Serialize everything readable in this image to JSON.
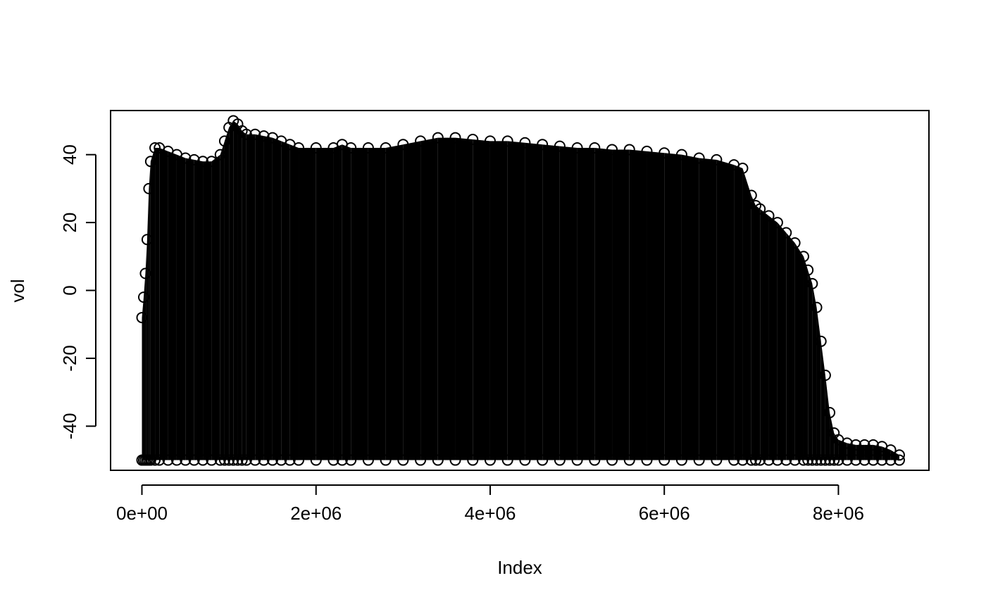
{
  "chart_data": {
    "type": "scatter",
    "title": "",
    "xlabel": "Index",
    "ylabel": "vol",
    "xlim": [
      -360000,
      9040000
    ],
    "ylim": [
      -53,
      53
    ],
    "x_ticks": [
      {
        "value": 0,
        "label": "0e+00"
      },
      {
        "value": 2000000,
        "label": "2e+06"
      },
      {
        "value": 4000000,
        "label": "4e+06"
      },
      {
        "value": 6000000,
        "label": "6e+06"
      },
      {
        "value": 8000000,
        "label": "8e+06"
      }
    ],
    "y_ticks": [
      {
        "value": -40,
        "label": "-40"
      },
      {
        "value": -20,
        "label": "-20"
      },
      {
        "value": 0,
        "label": "0"
      },
      {
        "value": 20,
        "label": "20"
      },
      {
        "value": 40,
        "label": "40"
      }
    ],
    "marker": "open-circle",
    "point_color": "#000000",
    "grid": false,
    "legend": "none",
    "series": [
      {
        "x": [
          0,
          20000,
          40000,
          60000,
          80000,
          100000,
          150000,
          200000,
          300000,
          400000,
          500000,
          600000,
          700000,
          800000,
          900000,
          950000,
          1000000,
          1050000,
          1100000,
          1150000,
          1200000,
          1300000,
          1400000,
          1500000,
          1600000,
          1700000,
          1800000,
          2000000,
          2200000,
          2300000,
          2400000,
          2600000,
          2800000,
          3000000,
          3200000,
          3400000,
          3600000,
          3800000,
          4000000,
          4200000,
          4400000,
          4600000,
          4800000,
          5000000,
          5200000,
          5400000,
          5600000,
          5800000,
          6000000,
          6200000,
          6400000,
          6600000,
          6800000,
          6900000,
          7000000,
          7050000,
          7100000,
          7200000,
          7300000,
          7400000,
          7500000,
          7600000,
          7650000,
          7700000,
          7750000,
          7800000,
          7850000,
          7900000,
          7950000,
          8000000,
          8100000,
          8200000,
          8300000,
          8400000,
          8500000,
          8600000,
          8700000
        ],
        "upper": [
          -8,
          -2,
          5,
          15,
          30,
          38,
          42,
          42,
          41,
          40,
          39,
          38.5,
          38,
          38,
          40,
          44,
          48,
          50,
          49,
          47,
          46,
          46,
          45.5,
          45,
          44,
          43,
          42,
          42,
          42,
          43,
          42,
          42,
          42,
          43,
          44,
          45,
          45,
          44.5,
          44,
          44,
          43.5,
          43,
          42.5,
          42,
          42,
          41.5,
          41.5,
          41,
          40.5,
          40,
          39,
          38.5,
          37,
          36,
          28,
          25,
          24,
          22,
          20,
          17,
          14,
          10,
          6,
          2,
          -5,
          -15,
          -25,
          -36,
          -42,
          -44,
          -45,
          -45.5,
          -45.5,
          -45.5,
          -46,
          -47,
          -48.5
        ],
        "lower": -50
      }
    ]
  }
}
